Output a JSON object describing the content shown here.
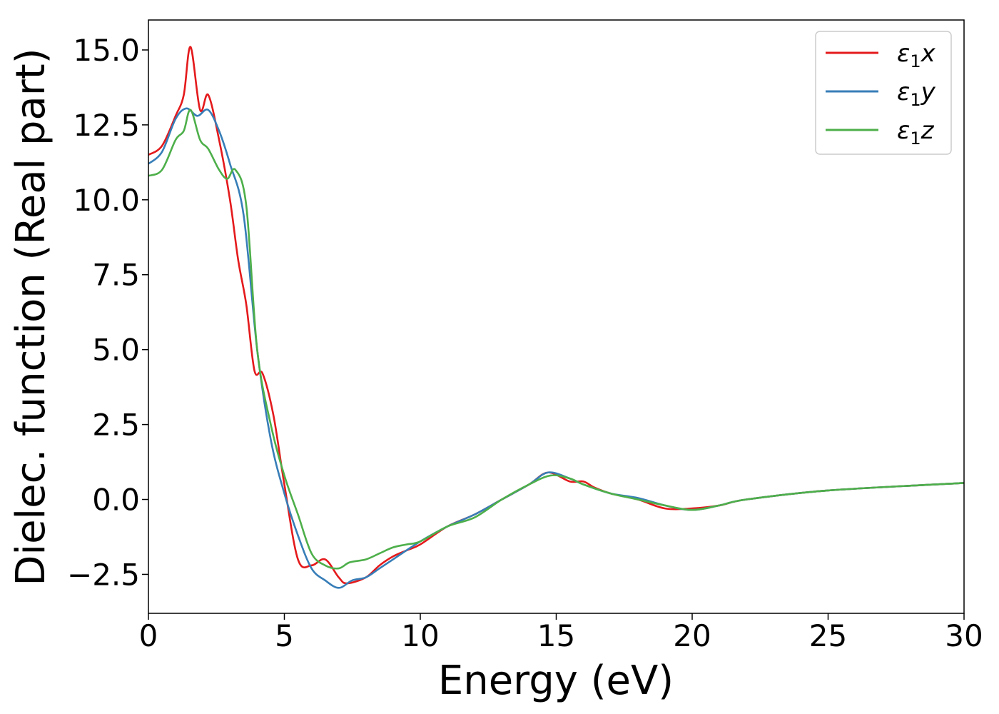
{
  "chart_data": {
    "type": "line",
    "title": "",
    "xlabel": "Energy (eV)",
    "ylabel": "Dielec. function (Real part)",
    "xlim": [
      0,
      30
    ],
    "ylim": [
      -3.8,
      16.0
    ],
    "xticks": [
      0,
      5,
      10,
      15,
      20,
      25,
      30
    ],
    "yticks": [
      -2.5,
      0.0,
      2.5,
      5.0,
      7.5,
      10.0,
      12.5,
      15.0
    ],
    "xtick_labels": [
      "0",
      "5",
      "10",
      "15",
      "20",
      "25",
      "30"
    ],
    "ytick_labels": [
      "−2.5",
      "0.0",
      "2.5",
      "5.0",
      "7.5",
      "10.0",
      "12.5",
      "15.0"
    ],
    "grid": false,
    "legend_position": "top-right",
    "series": [
      {
        "name": "x",
        "color": "#e41a1c",
        "x": [
          0,
          0.5,
          1.0,
          1.3,
          1.55,
          1.9,
          2.2,
          2.6,
          3.0,
          3.3,
          3.6,
          3.9,
          4.2,
          4.6,
          5.0,
          5.5,
          6.0,
          6.5,
          7.0,
          7.3,
          8.0,
          8.5,
          9.0,
          9.5,
          10.0,
          11.0,
          12.0,
          13.0,
          14.0,
          14.7,
          15.5,
          16.0,
          16.4,
          17.0,
          18.0,
          19.0,
          20.0,
          21.0,
          22.0,
          25.0,
          30.0
        ],
        "values": [
          11.5,
          11.8,
          12.8,
          13.5,
          15.1,
          13.0,
          13.5,
          12.0,
          10.0,
          8.0,
          6.5,
          4.3,
          4.2,
          2.8,
          0.5,
          -2.0,
          -2.2,
          -2.0,
          -2.6,
          -2.8,
          -2.6,
          -2.2,
          -1.9,
          -1.7,
          -1.5,
          -0.9,
          -0.5,
          0.0,
          0.5,
          0.9,
          0.6,
          0.6,
          0.4,
          0.2,
          0.0,
          -0.3,
          -0.3,
          -0.2,
          0.0,
          0.3,
          0.55
        ]
      },
      {
        "name": "y",
        "color": "#377eb8",
        "x": [
          0,
          0.5,
          1.0,
          1.4,
          1.8,
          2.2,
          2.6,
          3.0,
          3.5,
          4.0,
          4.5,
          5.0,
          5.5,
          6.0,
          6.5,
          7.0,
          7.5,
          8.0,
          8.5,
          9.0,
          10.0,
          11.0,
          12.0,
          13.0,
          14.0,
          14.7,
          15.5,
          16.0,
          17.0,
          18.0,
          19.0,
          20.0,
          21.0,
          22.0,
          25.0,
          30.0
        ],
        "values": [
          11.2,
          11.6,
          12.7,
          13.05,
          12.8,
          13.0,
          12.3,
          11.2,
          9.5,
          5.0,
          2.0,
          0.2,
          -1.2,
          -2.3,
          -2.7,
          -2.95,
          -2.7,
          -2.6,
          -2.3,
          -2.0,
          -1.4,
          -0.9,
          -0.5,
          0.0,
          0.5,
          0.9,
          0.7,
          0.5,
          0.2,
          0.05,
          -0.2,
          -0.35,
          -0.2,
          0.0,
          0.3,
          0.55
        ]
      },
      {
        "name": "z",
        "color": "#4daf4a",
        "x": [
          0,
          0.5,
          1.0,
          1.3,
          1.55,
          1.9,
          2.2,
          2.6,
          2.9,
          3.2,
          3.6,
          4.0,
          4.5,
          5.0,
          5.5,
          6.0,
          6.5,
          7.0,
          7.4,
          8.0,
          8.5,
          9.0,
          9.5,
          10.0,
          11.0,
          12.0,
          13.0,
          14.0,
          14.8,
          15.5,
          16.0,
          17.0,
          18.0,
          19.0,
          20.0,
          21.0,
          22.0,
          25.0,
          30.0
        ],
        "values": [
          10.8,
          11.0,
          12.0,
          12.3,
          13.0,
          12.0,
          11.7,
          11.0,
          10.7,
          11.0,
          9.8,
          5.0,
          2.5,
          0.8,
          -0.5,
          -1.8,
          -2.2,
          -2.3,
          -2.1,
          -2.0,
          -1.8,
          -1.6,
          -1.5,
          -1.4,
          -0.9,
          -0.6,
          0.0,
          0.5,
          0.8,
          0.7,
          0.5,
          0.2,
          0.0,
          -0.2,
          -0.35,
          -0.2,
          0.0,
          0.3,
          0.55
        ]
      }
    ]
  }
}
